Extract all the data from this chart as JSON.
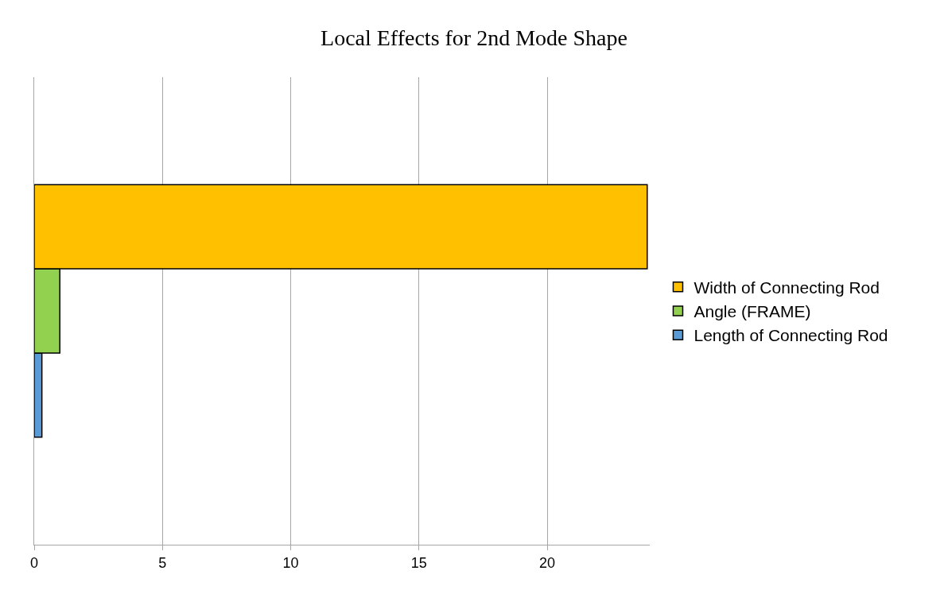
{
  "chart_data": {
    "type": "bar",
    "orientation": "horizontal",
    "title": "Local Effects for 2nd Mode Shape",
    "categories": [
      null
    ],
    "series": [
      {
        "name": "Width of Connecting Rod",
        "color": "#ffc000",
        "values": [
          23.9
        ]
      },
      {
        "name": "Angle (FRAME)",
        "color": "#92d050",
        "values": [
          1.0
        ]
      },
      {
        "name": "Length of Connecting Rod",
        "color": "#5b9bd5",
        "values": [
          0.3
        ]
      }
    ],
    "xlim": [
      0,
      24
    ],
    "xticks": [
      0,
      5,
      10,
      15,
      20
    ],
    "grid": "x",
    "legend": "right"
  }
}
